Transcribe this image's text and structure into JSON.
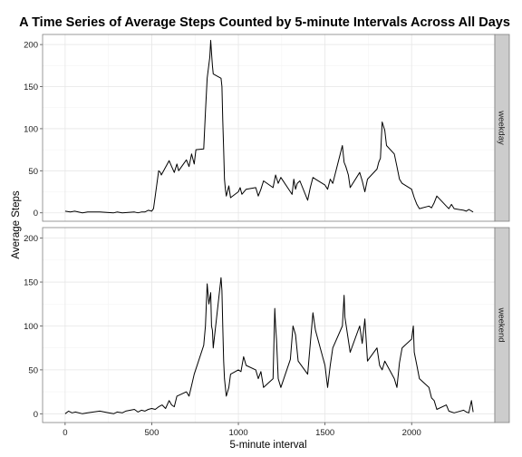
{
  "chart_data": {
    "type": "line",
    "title": "A Time Series of Average Steps Counted by 5-minute Intervals Across All Days",
    "xlabel": "5-minute interval",
    "ylabel": "Average Steps",
    "xlim": [
      -130,
      2480
    ],
    "ylim": [
      -10,
      212
    ],
    "x_ticks": [
      0,
      500,
      1000,
      1500,
      2000
    ],
    "y_ticks": [
      0,
      50,
      100,
      150,
      200
    ],
    "grid": true,
    "colors": {
      "line": "#000000",
      "grid_major": "#e6e6e6",
      "grid_minor": "#f3f3f3",
      "strip": "#cccccc",
      "frame": "#7f7f7f"
    },
    "panels": [
      {
        "label": "weekday",
        "x": [
          0,
          30,
          55,
          100,
          130,
          200,
          280,
          300,
          330,
          400,
          420,
          440,
          460,
          480,
          500,
          510,
          520,
          530,
          540,
          550,
          555,
          600,
          615,
          630,
          645,
          655,
          700,
          715,
          730,
          745,
          755,
          800,
          810,
          820,
          835,
          840,
          845,
          850,
          855,
          900,
          905,
          910,
          915,
          920,
          925,
          930,
          945,
          955,
          1000,
          1010,
          1020,
          1045,
          1100,
          1115,
          1130,
          1145,
          1200,
          1215,
          1230,
          1245,
          1300,
          1310,
          1320,
          1330,
          1340,
          1355,
          1400,
          1415,
          1430,
          1445,
          1500,
          1515,
          1530,
          1545,
          1600,
          1610,
          1620,
          1635,
          1645,
          1700,
          1715,
          1730,
          1745,
          1800,
          1810,
          1820,
          1830,
          1845,
          1855,
          1900,
          1915,
          1930,
          1945,
          2000,
          2015,
          2030,
          2045,
          2100,
          2115,
          2130,
          2145,
          2200,
          2215,
          2230,
          2245,
          2300,
          2315,
          2330,
          2355
        ],
        "y": [
          2,
          1,
          2,
          0,
          1,
          1,
          0,
          1,
          0,
          1,
          0,
          1,
          1,
          3,
          2,
          5,
          20,
          35,
          50,
          48,
          45,
          62,
          55,
          48,
          58,
          50,
          63,
          55,
          70,
          58,
          75,
          76,
          120,
          160,
          185,
          205,
          190,
          175,
          165,
          160,
          150,
          110,
          75,
          40,
          28,
          20,
          32,
          18,
          25,
          30,
          22,
          28,
          30,
          20,
          28,
          38,
          30,
          45,
          35,
          42,
          25,
          22,
          40,
          28,
          35,
          38,
          15,
          30,
          42,
          40,
          33,
          28,
          40,
          35,
          80,
          60,
          55,
          45,
          30,
          48,
          38,
          25,
          40,
          52,
          60,
          65,
          108,
          98,
          80,
          70,
          55,
          40,
          35,
          28,
          18,
          10,
          5,
          8,
          6,
          12,
          20,
          8,
          5,
          10,
          5,
          3,
          2,
          4,
          1
        ]
      },
      {
        "label": "weekend",
        "x": [
          0,
          20,
          40,
          60,
          100,
          130,
          200,
          250,
          280,
          300,
          330,
          350,
          400,
          420,
          440,
          460,
          480,
          500,
          520,
          540,
          560,
          580,
          600,
          615,
          630,
          645,
          700,
          715,
          730,
          745,
          800,
          810,
          820,
          830,
          840,
          845,
          850,
          855,
          900,
          905,
          910,
          915,
          920,
          925,
          930,
          945,
          955,
          1000,
          1015,
          1030,
          1045,
          1100,
          1115,
          1130,
          1145,
          1200,
          1210,
          1215,
          1220,
          1230,
          1245,
          1300,
          1315,
          1330,
          1345,
          1400,
          1415,
          1430,
          1445,
          1500,
          1515,
          1530,
          1545,
          1600,
          1610,
          1615,
          1630,
          1645,
          1700,
          1715,
          1730,
          1745,
          1800,
          1815,
          1830,
          1845,
          1900,
          1915,
          1930,
          1945,
          2000,
          2010,
          2015,
          2030,
          2045,
          2100,
          2115,
          2130,
          2145,
          2200,
          2215,
          2230,
          2245,
          2300,
          2315,
          2330,
          2345,
          2355
        ],
        "y": [
          0,
          3,
          1,
          2,
          0,
          1,
          3,
          1,
          0,
          2,
          1,
          3,
          5,
          2,
          4,
          3,
          5,
          6,
          5,
          8,
          10,
          6,
          15,
          10,
          8,
          20,
          25,
          20,
          32,
          45,
          78,
          100,
          148,
          125,
          138,
          100,
          95,
          75,
          155,
          140,
          100,
          60,
          40,
          30,
          20,
          30,
          45,
          50,
          48,
          65,
          55,
          50,
          40,
          48,
          30,
          40,
          120,
          100,
          85,
          40,
          30,
          62,
          100,
          90,
          60,
          45,
          80,
          115,
          95,
          55,
          30,
          55,
          75,
          100,
          135,
          110,
          90,
          70,
          100,
          80,
          108,
          60,
          75,
          55,
          50,
          60,
          40,
          30,
          58,
          75,
          85,
          100,
          70,
          55,
          40,
          30,
          18,
          15,
          5,
          10,
          3,
          2,
          1,
          4,
          2,
          1,
          15,
          2
        ]
      }
    ]
  }
}
